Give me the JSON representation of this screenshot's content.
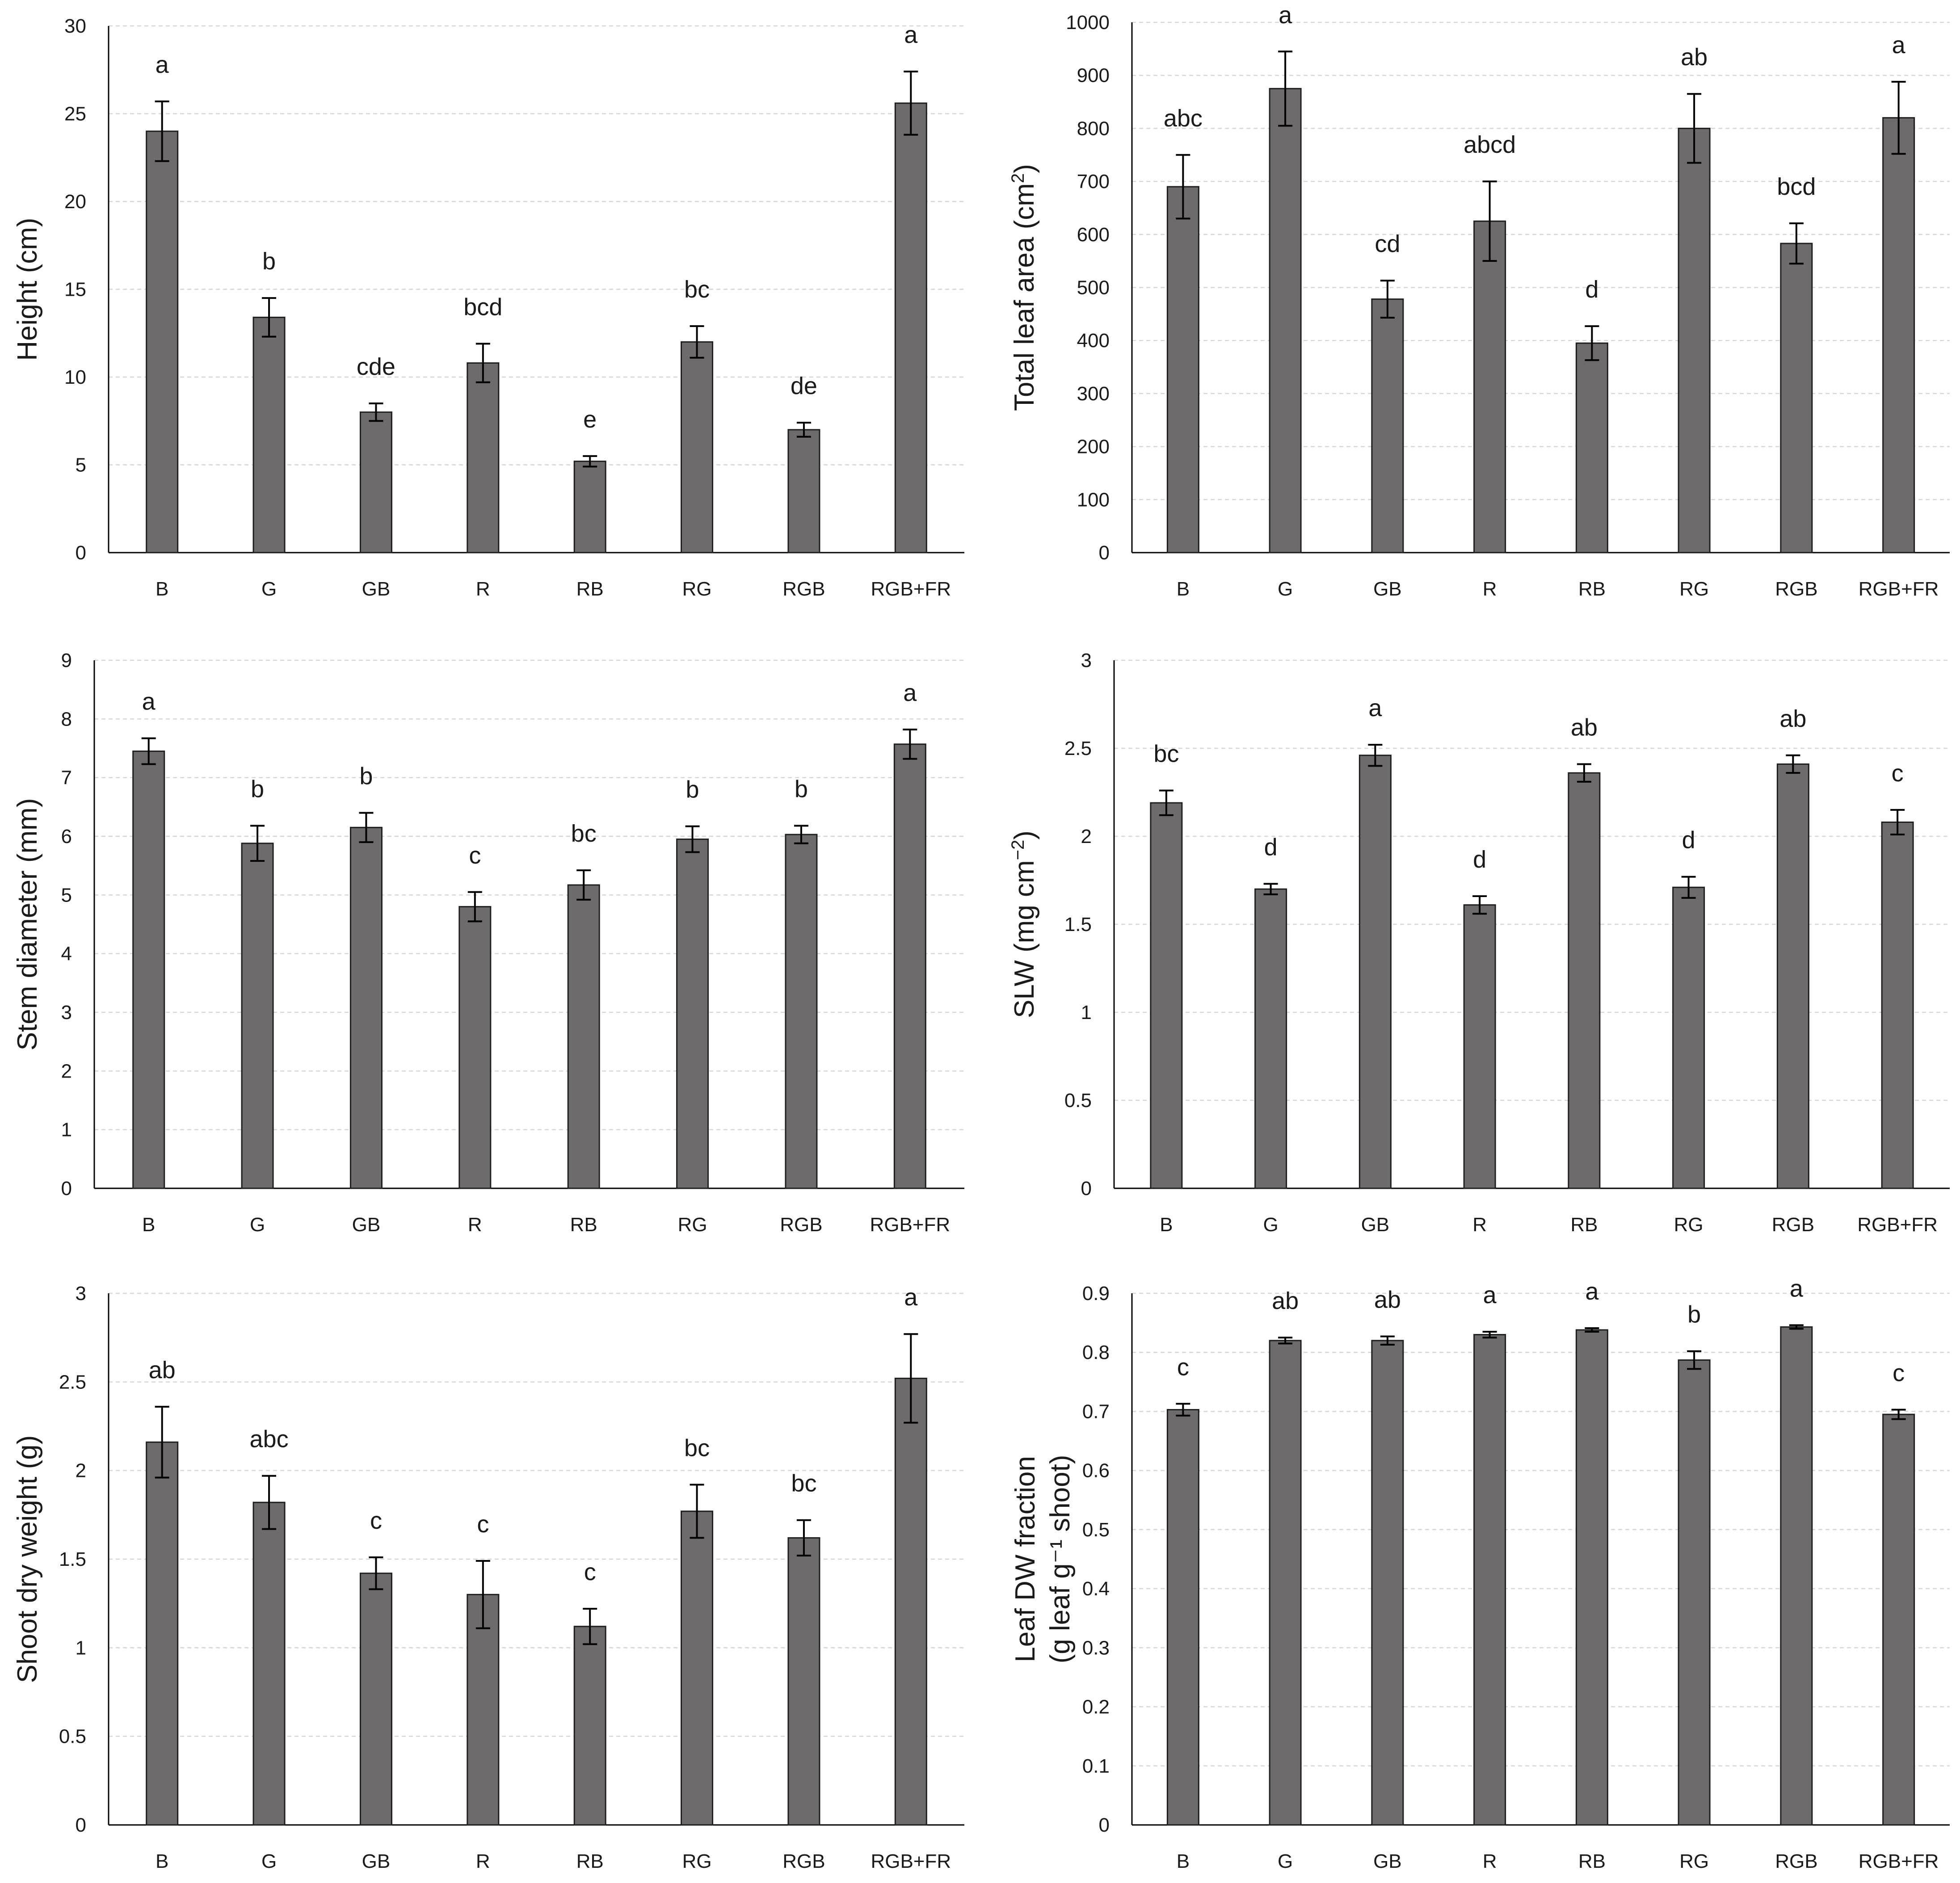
{
  "chart_data": [
    {
      "type": "bar",
      "categories": [
        "B",
        "G",
        "GB",
        "R",
        "RB",
        "RG",
        "RGB",
        "RGB+FR"
      ],
      "values": [
        24.0,
        13.4,
        8.0,
        10.8,
        5.2,
        12.0,
        7.0,
        25.6
      ],
      "errors": [
        1.7,
        1.1,
        0.5,
        1.1,
        0.3,
        0.9,
        0.4,
        1.8
      ],
      "letters": [
        "a",
        "b",
        "cde",
        "bcd",
        "e",
        "bc",
        "de",
        "a"
      ],
      "ylabel": "Height (cm)",
      "ylabel_sup": "",
      "ylabel_after": "",
      "ylabel_line2": "",
      "ylim": [
        0,
        30
      ],
      "ticks": [
        "0",
        "5",
        "10",
        "15",
        "20",
        "25",
        "30"
      ]
    },
    {
      "type": "bar",
      "categories": [
        "B",
        "G",
        "GB",
        "R",
        "RB",
        "RG",
        "RGB",
        "RGB+FR"
      ],
      "values": [
        690,
        875,
        478,
        625,
        395,
        800,
        583,
        820
      ],
      "errors": [
        60,
        70,
        35,
        75,
        32,
        65,
        38,
        68
      ],
      "letters": [
        "abc",
        "a",
        "cd",
        "abcd",
        "d",
        "ab",
        "bcd",
        "a"
      ],
      "ylabel": "Total leaf area (cm",
      "ylabel_sup": "2",
      "ylabel_after": ")",
      "ylabel_line2": "",
      "ylim": [
        0,
        1000
      ],
      "ticks": [
        "0",
        "100",
        "200",
        "300",
        "400",
        "500",
        "600",
        "700",
        "800",
        "900",
        "1000"
      ]
    },
    {
      "type": "bar",
      "categories": [
        "B",
        "G",
        "GB",
        "R",
        "RB",
        "RG",
        "RGB",
        "RGB+FR"
      ],
      "values": [
        7.45,
        5.88,
        6.15,
        4.8,
        5.17,
        5.95,
        6.03,
        7.57
      ],
      "errors": [
        0.22,
        0.3,
        0.25,
        0.25,
        0.25,
        0.22,
        0.15,
        0.25
      ],
      "letters": [
        "a",
        "b",
        "b",
        "c",
        "bc",
        "b",
        "b",
        "a"
      ],
      "ylabel": "Stem diameter (mm)",
      "ylabel_sup": "",
      "ylabel_after": "",
      "ylabel_line2": "",
      "ylim": [
        0,
        9
      ],
      "ticks": [
        "0",
        "1",
        "2",
        "3",
        "4",
        "5",
        "6",
        "7",
        "8",
        "9"
      ]
    },
    {
      "type": "bar",
      "categories": [
        "B",
        "G",
        "GB",
        "R",
        "RB",
        "RG",
        "RGB",
        "RGB+FR"
      ],
      "values": [
        2.19,
        1.7,
        2.46,
        1.61,
        2.36,
        1.71,
        2.41,
        2.08
      ],
      "errors": [
        0.07,
        0.03,
        0.06,
        0.05,
        0.05,
        0.06,
        0.05,
        0.07
      ],
      "letters": [
        "bc",
        "d",
        "a",
        "d",
        "ab",
        "d",
        "ab",
        "c"
      ],
      "ylabel": "SLW (mg cm",
      "ylabel_sup": "−2",
      "ylabel_after": ")",
      "ylabel_line2": "",
      "ylim": [
        0,
        3
      ],
      "ticks": [
        "0",
        "0.5",
        "1",
        "1.5",
        "2",
        "2.5",
        "3"
      ]
    },
    {
      "type": "bar",
      "categories": [
        "B",
        "G",
        "GB",
        "R",
        "RB",
        "RG",
        "RGB",
        "RGB+FR"
      ],
      "values": [
        2.16,
        1.82,
        1.42,
        1.3,
        1.12,
        1.77,
        1.62,
        2.52
      ],
      "errors": [
        0.2,
        0.15,
        0.09,
        0.19,
        0.1,
        0.15,
        0.1,
        0.25
      ],
      "letters": [
        "ab",
        "abc",
        "c",
        "c",
        "c",
        "bc",
        "bc",
        "a"
      ],
      "ylabel": "Shoot dry weight (g)",
      "ylabel_sup": "",
      "ylabel_after": "",
      "ylabel_line2": "",
      "ylim": [
        0,
        3
      ],
      "ticks": [
        "0",
        "0.5",
        "1",
        "1.5",
        "2",
        "2.5",
        "3"
      ]
    },
    {
      "type": "bar",
      "categories": [
        "B",
        "G",
        "GB",
        "R",
        "RB",
        "RG",
        "RGB",
        "RGB+FR"
      ],
      "values": [
        0.703,
        0.82,
        0.82,
        0.83,
        0.838,
        0.787,
        0.843,
        0.695
      ],
      "errors": [
        0.01,
        0.005,
        0.007,
        0.005,
        0.003,
        0.015,
        0.003,
        0.008
      ],
      "letters": [
        "c",
        "ab",
        "ab",
        "a",
        "a",
        "b",
        "a",
        "c"
      ],
      "ylabel": "Leaf DW fraction",
      "ylabel_sup": "",
      "ylabel_after": "",
      "ylabel_line2": "(g leaf g⁻¹ shoot)",
      "ylim": [
        0,
        0.9
      ],
      "ticks": [
        "0",
        "0.1",
        "0.2",
        "0.3",
        "0.4",
        "0.5",
        "0.6",
        "0.7",
        "0.8",
        "0.9"
      ]
    }
  ]
}
